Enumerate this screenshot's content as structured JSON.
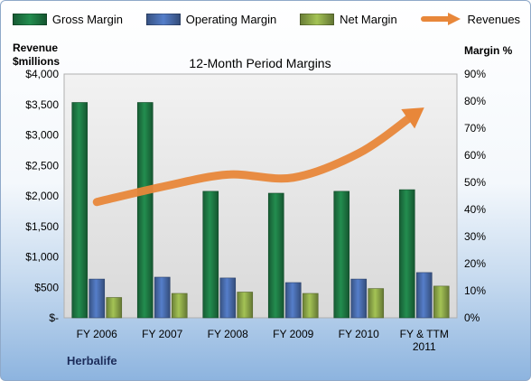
{
  "chart_data": {
    "type": "bar",
    "title": "12-Month Period Margins",
    "left_axis": {
      "label_line1": "Revenue",
      "label_line2": "$millions",
      "ylim": [
        0,
        4000
      ],
      "ticks": [
        "$-",
        "$500",
        "$1,000",
        "$1,500",
        "$2,000",
        "$2,500",
        "$3,000",
        "$3,500",
        "$4,000"
      ]
    },
    "right_axis": {
      "label": "Margin %",
      "ylim": [
        0,
        90
      ],
      "ticks": [
        "0%",
        "10%",
        "20%",
        "30%",
        "40%",
        "50%",
        "60%",
        "70%",
        "80%",
        "90%"
      ]
    },
    "categories": [
      "FY 2006",
      "FY 2007",
      "FY 2008",
      "FY 2009",
      "FY 2010",
      "FY & TTM 2011"
    ],
    "series": [
      {
        "name": "Gross Margin",
        "type": "bar",
        "axis": "right",
        "color": "#1e7b45",
        "values": [
          79.5,
          79.5,
          46.7,
          46.0,
          46.7,
          47.3
        ]
      },
      {
        "name": "Operating Margin",
        "type": "bar",
        "axis": "right",
        "color": "#4a6eb0",
        "values": [
          14.3,
          15.0,
          14.7,
          13.0,
          14.3,
          16.7
        ]
      },
      {
        "name": "Net Margin",
        "type": "bar",
        "axis": "right",
        "color": "#8faa4a",
        "values": [
          7.5,
          9.0,
          9.5,
          9.0,
          10.8,
          11.7
        ]
      },
      {
        "name": "Revenues",
        "type": "line",
        "axis": "left",
        "color": "#e8873a",
        "values": [
          1900,
          2150,
          2350,
          2300,
          2700,
          3450
        ]
      }
    ],
    "company": "Herbalife",
    "grid": false,
    "legend_position": "top",
    "plot_background": "#d9d9d9"
  }
}
